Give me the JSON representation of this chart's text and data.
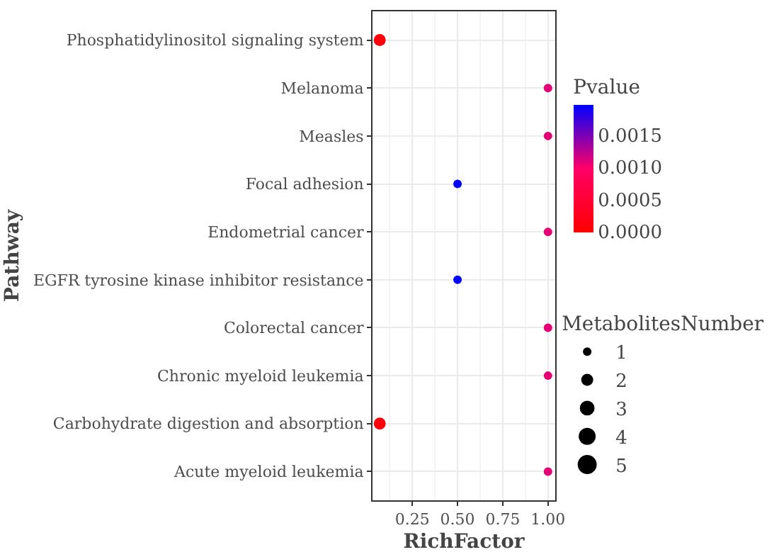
{
  "chart_data": {
    "type": "bubble",
    "orientation": "horizontal",
    "xlabel": "RichFactor",
    "ylabel": "Pathway",
    "categories": [
      "Phosphatidylinositol signaling system",
      "Melanoma",
      "Measles",
      "Focal adhesion",
      "Endometrial cancer",
      "EGFR tyrosine kinase inhibitor resistance",
      "Colorectal cancer",
      "Chronic myeloid leukemia",
      "Carbohydrate digestion and absorption",
      "Acute myeloid leukemia"
    ],
    "values": [
      0.07,
      1.0,
      1.0,
      0.5,
      1.0,
      0.5,
      1.0,
      1.0,
      0.07,
      1.0
    ],
    "sizes": [
      2,
      1,
      1,
      1,
      1,
      1,
      1,
      1,
      2,
      1
    ],
    "cvalues": [
      0.0001,
      0.0011,
      0.0011,
      0.00198,
      0.0011,
      0.00198,
      0.0011,
      0.0011,
      0.0001,
      0.0011
    ],
    "clim": [
      0,
      0.00198
    ],
    "clabel": "Pvalue",
    "cticks": [
      {
        "value": 0,
        "label": "0.0000"
      },
      {
        "value": 0.0005,
        "label": "0.0005"
      },
      {
        "value": 0.001,
        "label": "0.0010"
      },
      {
        "value": 0.0015,
        "label": "0.0015"
      }
    ],
    "legend_title": "MetabolitesNumber",
    "size_legend": [
      1,
      2,
      3,
      4,
      5
    ],
    "xlim": [
      0.03,
      1.04
    ],
    "xticks": [
      0.25,
      {
        "value": 0.5,
        "label": "0.50"
      },
      0.75,
      {
        "value": 1.0,
        "label": "1.00"
      }
    ],
    "grid": true
  }
}
